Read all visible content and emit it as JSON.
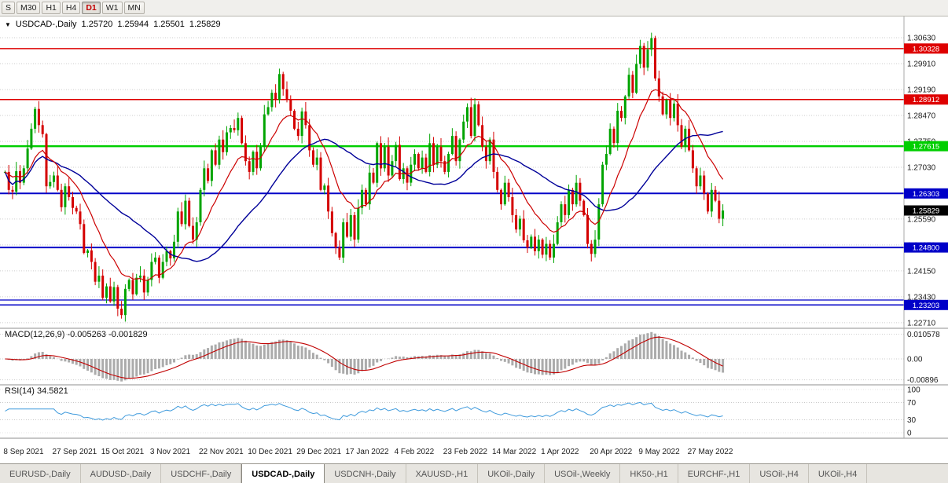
{
  "toolbar": {
    "periods": [
      {
        "label": "S",
        "active": false
      },
      {
        "label": "M30",
        "active": false
      },
      {
        "label": "H1",
        "active": false
      },
      {
        "label": "H4",
        "active": false
      },
      {
        "label": "D1",
        "active": true
      },
      {
        "label": "W1",
        "active": false
      },
      {
        "label": "MN",
        "active": false
      }
    ]
  },
  "chart_header": {
    "dropdown": "▼",
    "title": "USDCAD-,Daily",
    "open": "1.25720",
    "high": "1.25944",
    "low": "1.25501",
    "close": "1.25829"
  },
  "macd_panel": {
    "label": "MACD(12,26,9) -0.005263 -0.001829",
    "axis": [
      {
        "v": 0.010578,
        "label": "0.010578"
      },
      {
        "v": 0,
        "label": "0.00"
      },
      {
        "v": -0.00896,
        "label": "-0.00896"
      }
    ]
  },
  "rsi_panel": {
    "label": "RSI(14) 34.5821",
    "axis": [
      {
        "v": 100,
        "label": "100"
      },
      {
        "v": 70,
        "label": "70"
      },
      {
        "v": 30,
        "label": "30"
      },
      {
        "v": 0,
        "label": "0"
      }
    ]
  },
  "tabs": [
    {
      "label": "EURUSD-,Daily",
      "active": false
    },
    {
      "label": "AUDUSD-,Daily",
      "active": false
    },
    {
      "label": "USDCHF-,Daily",
      "active": false
    },
    {
      "label": "USDCAD-,Daily",
      "active": true
    },
    {
      "label": "USDCNH-,Daily",
      "active": false
    },
    {
      "label": "XAUUSD-,H1",
      "active": false
    },
    {
      "label": "UKOil-,Daily",
      "active": false
    },
    {
      "label": "USOil-,Weekly",
      "active": false
    },
    {
      "label": "HK50-,H1",
      "active": false
    },
    {
      "label": "EURCHF-,H1",
      "active": false
    },
    {
      "label": "USOil-,H4",
      "active": false
    },
    {
      "label": "UKOil-,H4",
      "active": false
    }
  ],
  "chart_data": {
    "type": "candlestick",
    "symbol": "USDCAD",
    "timeframe": "Daily",
    "ohlc_display": {
      "open": 1.2572,
      "high": 1.25944,
      "low": 1.25501,
      "close": 1.25829
    },
    "ylim": [
      1.224,
      1.309
    ],
    "up_color": "#00A400",
    "down_color": "#D40000",
    "price_gridlines": [
      1.3063,
      1.2991,
      1.2919,
      1.2847,
      1.2775,
      1.2703,
      1.2631,
      1.2559,
      1.2487,
      1.2415,
      1.2343,
      1.2271
    ],
    "levels": [
      {
        "price": 1.30328,
        "color": "#DE0000",
        "width": 1.5,
        "badge": true
      },
      {
        "price": 1.28912,
        "color": "#DE0000",
        "width": 1.5,
        "badge": true
      },
      {
        "price": 1.27615,
        "color": "#00CE00",
        "width": 2.5,
        "badge": true
      },
      {
        "price": 1.26303,
        "color": "#0000C8",
        "width": 2,
        "badge": true
      },
      {
        "price": 1.248,
        "color": "#0000C8",
        "width": 2,
        "badge": true
      },
      {
        "price": 1.2334,
        "color": "#0000C8",
        "width": 1.2,
        "badge": false
      },
      {
        "price": 1.23203,
        "color": "#0000C8",
        "width": 1.5,
        "badge": true
      }
    ],
    "current_price": {
      "value": 1.25829,
      "badge_color": "#000000"
    },
    "ma_fast": {
      "period": 13,
      "type": "ema",
      "color": "#CC0000"
    },
    "ma_slow": {
      "period": 34,
      "type": "sma",
      "color": "#000099"
    },
    "macd": {
      "fast": 12,
      "slow": 26,
      "signal": 9,
      "value": -0.005263,
      "signal_value": -0.001829,
      "hist_color": "#ababab",
      "signal_color": "#C00000"
    },
    "rsi": {
      "period": 14,
      "value": 34.5821,
      "color": "#3E9ADC",
      "levels": [
        70,
        30
      ]
    },
    "date_ticks": [
      {
        "i": 0,
        "label": "8 Sep 2021"
      },
      {
        "i": 13,
        "label": "27 Sep 2021"
      },
      {
        "i": 26,
        "label": "15 Oct 2021"
      },
      {
        "i": 39,
        "label": "3 Nov 2021"
      },
      {
        "i": 52,
        "label": "22 Nov 2021"
      },
      {
        "i": 65,
        "label": "10 Dec 2021"
      },
      {
        "i": 78,
        "label": "29 Dec 2021"
      },
      {
        "i": 91,
        "label": "17 Jan 2022"
      },
      {
        "i": 104,
        "label": "4 Feb 2022"
      },
      {
        "i": 117,
        "label": "23 Feb 2022"
      },
      {
        "i": 130,
        "label": "14 Mar 2022"
      },
      {
        "i": 143,
        "label": "1 Apr 2022"
      },
      {
        "i": 156,
        "label": "20 Apr 2022"
      },
      {
        "i": 169,
        "label": "9 May 2022"
      },
      {
        "i": 182,
        "label": "27 May 2022"
      }
    ],
    "closes": [
      1.269,
      1.264,
      1.2635,
      1.2692,
      1.266,
      1.27,
      1.2755,
      1.281,
      1.2865,
      1.282,
      1.2795,
      1.265,
      1.2662,
      1.268,
      1.264,
      1.2592,
      1.265,
      1.262,
      1.259,
      1.258,
      1.2545,
      1.2465,
      1.2472,
      1.244,
      1.2385,
      1.2402,
      1.234,
      1.2372,
      1.233,
      1.237,
      1.231,
      1.2292,
      1.2365,
      1.239,
      1.235,
      1.2396,
      1.2402,
      1.2355,
      1.239,
      1.244,
      1.2452,
      1.2396,
      1.244,
      1.247,
      1.245,
      1.2496,
      1.258,
      1.2545,
      1.261,
      1.254,
      1.2502,
      1.255,
      1.264,
      1.27,
      1.2665,
      1.275,
      1.271,
      1.278,
      1.2745,
      1.28,
      1.2812,
      1.2806,
      1.284,
      1.277,
      1.272,
      1.269,
      1.2746,
      1.27,
      1.276,
      1.285,
      1.287,
      1.291,
      1.289,
      1.2962,
      1.292,
      1.289,
      1.286,
      1.281,
      1.279,
      1.2858,
      1.282,
      1.275,
      1.271,
      1.273,
      1.264,
      1.2652,
      1.258,
      1.252,
      1.248,
      1.2452,
      1.255,
      1.251,
      1.257,
      1.2502,
      1.259,
      1.264,
      1.26,
      1.2688,
      1.266,
      1.277,
      1.27,
      1.276,
      1.268,
      1.272,
      1.2765,
      1.267,
      1.27,
      1.266,
      1.271,
      1.274,
      1.27,
      1.273,
      1.269,
      1.277,
      1.271,
      1.276,
      1.272,
      1.269,
      1.274,
      1.279,
      1.272,
      1.278,
      1.283,
      1.287,
      1.279,
      1.2878,
      1.282,
      1.276,
      1.272,
      1.278,
      1.269,
      1.264,
      1.26,
      1.266,
      1.262,
      1.257,
      1.253,
      1.256,
      1.25,
      1.248,
      1.251,
      1.247,
      1.2502,
      1.246,
      1.249,
      1.2452,
      1.249,
      1.255,
      1.26,
      1.257,
      1.264,
      1.26,
      1.266,
      1.261,
      1.257,
      1.249,
      1.2462,
      1.2502,
      1.26,
      1.271,
      1.274,
      1.281,
      1.277,
      1.286,
      1.284,
      1.29,
      1.296,
      1.291,
      1.299,
      1.304,
      1.298,
      1.303,
      1.3062,
      1.295,
      1.29,
      1.285,
      1.289,
      1.284,
      1.288,
      1.282,
      1.276,
      1.281,
      1.275,
      1.27,
      1.265,
      1.268,
      1.263,
      1.258,
      1.264,
      1.261,
      1.256,
      1.25829
    ]
  }
}
